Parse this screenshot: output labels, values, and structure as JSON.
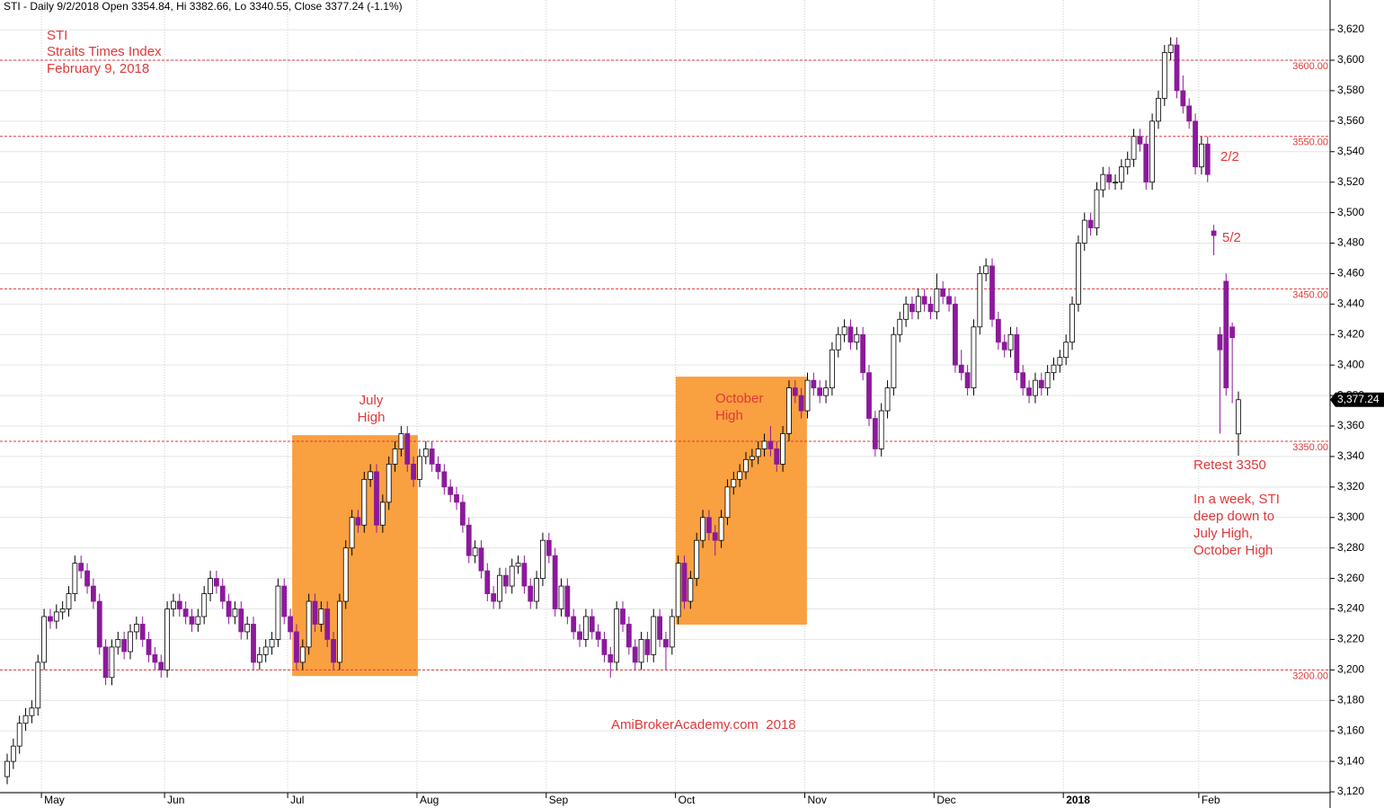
{
  "chart_data": {
    "type": "candlestick",
    "title": "STI - Daily 9/2/2018 Open 3354.84, Hi 3382.66, Lo 3340.55, Close 3377.24 (-1.1%)",
    "categories": [
      null,
      null,
      null,
      null,
      null,
      null,
      "May",
      null,
      null,
      null,
      null,
      null,
      null,
      null,
      null,
      null,
      null,
      null,
      null,
      null,
      null,
      null,
      null,
      null,
      null,
      null,
      "Jun",
      null,
      null,
      null,
      null,
      null,
      null,
      null,
      null,
      null,
      null,
      null,
      null,
      null,
      null,
      null,
      null,
      null,
      null,
      null,
      "Jul",
      null,
      null,
      null,
      null,
      null,
      null,
      null,
      null,
      null,
      null,
      null,
      null,
      null,
      null,
      null,
      null,
      null,
      null,
      null,
      null,
      "Aug",
      null,
      null,
      null,
      null,
      null,
      null,
      null,
      null,
      null,
      null,
      null,
      null,
      null,
      null,
      null,
      null,
      null,
      null,
      null,
      null,
      "Sep",
      null,
      null,
      null,
      null,
      null,
      null,
      null,
      null,
      null,
      null,
      null,
      null,
      null,
      null,
      null,
      null,
      null,
      null,
      null,
      null,
      "Oct",
      null,
      null,
      null,
      null,
      null,
      null,
      null,
      null,
      null,
      null,
      null,
      null,
      null,
      null,
      null,
      null,
      null,
      null,
      null,
      null,
      "Nov",
      null,
      null,
      null,
      null,
      null,
      null,
      null,
      null,
      null,
      null,
      null,
      null,
      null,
      null,
      null,
      null,
      null,
      null,
      null,
      null,
      "Dec",
      null,
      null,
      null,
      null,
      null,
      null,
      null,
      null,
      null,
      null,
      null,
      null,
      null,
      null,
      null,
      null,
      null,
      null,
      null,
      null,
      "2018",
      null,
      null,
      null,
      null,
      null,
      null,
      null,
      null,
      null,
      null,
      null,
      null,
      null,
      null,
      null,
      null,
      null,
      null,
      null,
      null,
      null,
      "Feb",
      null,
      null,
      null,
      null,
      null,
      null
    ],
    "open": [
      3130,
      3140,
      3150,
      3165,
      3170,
      3175,
      3205,
      3235,
      3232,
      3238,
      3240,
      3250,
      3270,
      3265,
      3255,
      3245,
      3215,
      3195,
      3215,
      3220,
      3212,
      3225,
      3230,
      3220,
      3210,
      3205,
      3200,
      3240,
      3245,
      3240,
      3235,
      3230,
      3235,
      3250,
      3260,
      3255,
      3245,
      3235,
      3240,
      3225,
      3230,
      3205,
      3210,
      3215,
      3220,
      3255,
      3235,
      3225,
      3205,
      3215,
      3245,
      3230,
      3240,
      3220,
      3205,
      3245,
      3280,
      3300,
      3295,
      3325,
      3330,
      3295,
      3310,
      3335,
      3345,
      3355,
      3335,
      3325,
      3340,
      3345,
      3335,
      3330,
      3320,
      3315,
      3310,
      3295,
      3275,
      3280,
      3265,
      3250,
      3245,
      3262,
      3255,
      3268,
      3270,
      3255,
      3245,
      3260,
      3285,
      3275,
      3240,
      3255,
      3235,
      3225,
      3220,
      3235,
      3225,
      3220,
      3210,
      3205,
      3240,
      3230,
      3215,
      3205,
      3220,
      3210,
      3235,
      3220,
      3215,
      3235,
      3270,
      3245,
      3260,
      3285,
      3300,
      3290,
      3285,
      3300,
      3320,
      3325,
      3330,
      3338,
      3340,
      3345,
      3350,
      3345,
      3335,
      3355,
      3385,
      3380,
      3370,
      3390,
      3385,
      3380,
      3385,
      3410,
      3420,
      3425,
      3415,
      3420,
      3395,
      3365,
      3345,
      3370,
      3385,
      3420,
      3430,
      3440,
      3435,
      3445,
      3440,
      3435,
      3450,
      3445,
      3440,
      3400,
      3395,
      3385,
      3425,
      3460,
      3465,
      3430,
      3415,
      3410,
      3420,
      3395,
      3385,
      3380,
      3390,
      3385,
      3395,
      3400,
      3405,
      3415,
      3440,
      3480,
      3495,
      3490,
      3515,
      3525,
      3520,
      3520,
      3530,
      3535,
      3550,
      3545,
      3520,
      3560,
      3575,
      3605,
      3610,
      3580,
      3570,
      3560,
      3530,
      3545,
      3488,
      3420,
      3455,
      3425,
      3354.84
    ],
    "high": [
      3145,
      3155,
      3170,
      3175,
      3180,
      3210,
      3240,
      3240,
      3243,
      3245,
      3255,
      3275,
      3275,
      3270,
      3260,
      3250,
      3220,
      3220,
      3225,
      3225,
      3230,
      3235,
      3235,
      3225,
      3215,
      3210,
      3245,
      3250,
      3250,
      3245,
      3240,
      3240,
      3255,
      3265,
      3265,
      3260,
      3250,
      3245,
      3245,
      3235,
      3235,
      3215,
      3220,
      3225,
      3260,
      3260,
      3240,
      3230,
      3220,
      3250,
      3250,
      3245,
      3245,
      3225,
      3250,
      3285,
      3305,
      3305,
      3330,
      3335,
      3335,
      3315,
      3340,
      3350,
      3360,
      3360,
      3340,
      3345,
      3350,
      3350,
      3340,
      3335,
      3325,
      3320,
      3315,
      3300,
      3285,
      3285,
      3270,
      3255,
      3267,
      3267,
      3273,
      3275,
      3275,
      3260,
      3265,
      3290,
      3290,
      3280,
      3260,
      3260,
      3240,
      3230,
      3240,
      3240,
      3230,
      3225,
      3215,
      3245,
      3245,
      3235,
      3220,
      3225,
      3225,
      3240,
      3240,
      3225,
      3240,
      3275,
      3275,
      3265,
      3290,
      3305,
      3305,
      3295,
      3305,
      3325,
      3330,
      3335,
      3343,
      3345,
      3350,
      3355,
      3360,
      3350,
      3360,
      3390,
      3390,
      3385,
      3395,
      3395,
      3390,
      3390,
      3415,
      3425,
      3430,
      3430,
      3425,
      3425,
      3400,
      3370,
      3375,
      3390,
      3425,
      3435,
      3445,
      3445,
      3450,
      3450,
      3445,
      3460,
      3455,
      3450,
      3445,
      3410,
      3400,
      3430,
      3465,
      3470,
      3470,
      3435,
      3420,
      3425,
      3425,
      3400,
      3390,
      3395,
      3395,
      3400,
      3405,
      3410,
      3420,
      3445,
      3485,
      3500,
      3500,
      3520,
      3530,
      3530,
      3525,
      3535,
      3540,
      3555,
      3555,
      3550,
      3565,
      3580,
      3610,
      3615,
      3615,
      3590,
      3575,
      3565,
      3550,
      3550,
      3492,
      3425,
      3460,
      3428,
      3382.66
    ],
    "low": [
      3125,
      3135,
      3145,
      3160,
      3165,
      3170,
      3200,
      3227,
      3227,
      3233,
      3235,
      3245,
      3260,
      3250,
      3240,
      3210,
      3190,
      3190,
      3210,
      3207,
      3207,
      3220,
      3215,
      3205,
      3200,
      3195,
      3195,
      3235,
      3235,
      3230,
      3225,
      3225,
      3230,
      3245,
      3250,
      3240,
      3230,
      3230,
      3220,
      3220,
      3200,
      3200,
      3205,
      3210,
      3215,
      3230,
      3220,
      3200,
      3200,
      3210,
      3225,
      3225,
      3215,
      3200,
      3200,
      3240,
      3275,
      3290,
      3290,
      3320,
      3290,
      3290,
      3305,
      3330,
      3340,
      3330,
      3320,
      3320,
      3335,
      3330,
      3325,
      3315,
      3310,
      3305,
      3290,
      3270,
      3270,
      3260,
      3245,
      3240,
      3240,
      3250,
      3250,
      3263,
      3250,
      3240,
      3240,
      3255,
      3270,
      3235,
      3235,
      3230,
      3220,
      3215,
      3215,
      3220,
      3215,
      3205,
      3195,
      3200,
      3225,
      3210,
      3200,
      3200,
      3205,
      3205,
      3215,
      3200,
      3210,
      3230,
      3240,
      3240,
      3255,
      3280,
      3285,
      3275,
      3280,
      3295,
      3315,
      3320,
      3325,
      3333,
      3335,
      3340,
      3340,
      3330,
      3330,
      3350,
      3375,
      3365,
      3365,
      3380,
      3375,
      3375,
      3380,
      3405,
      3415,
      3410,
      3410,
      3390,
      3360,
      3340,
      3340,
      3365,
      3380,
      3415,
      3425,
      3430,
      3430,
      3435,
      3430,
      3430,
      3440,
      3435,
      3395,
      3390,
      3380,
      3380,
      3420,
      3455,
      3425,
      3410,
      3405,
      3405,
      3390,
      3380,
      3375,
      3375,
      3380,
      3380,
      3390,
      3395,
      3400,
      3410,
      3435,
      3475,
      3485,
      3485,
      3510,
      3515,
      3515,
      3515,
      3525,
      3530,
      3540,
      3515,
      3515,
      3555,
      3570,
      3600,
      3575,
      3565,
      3555,
      3525,
      3525,
      3520,
      3472,
      3355,
      3380,
      3375,
      3340.55
    ],
    "close": [
      3140,
      3150,
      3165,
      3170,
      3175,
      3205,
      3235,
      3232,
      3238,
      3240,
      3250,
      3270,
      3265,
      3255,
      3245,
      3215,
      3195,
      3215,
      3220,
      3212,
      3225,
      3230,
      3220,
      3210,
      3205,
      3200,
      3240,
      3245,
      3240,
      3235,
      3230,
      3235,
      3250,
      3260,
      3255,
      3245,
      3235,
      3240,
      3225,
      3230,
      3205,
      3210,
      3215,
      3220,
      3255,
      3235,
      3225,
      3205,
      3215,
      3245,
      3230,
      3240,
      3220,
      3205,
      3245,
      3280,
      3300,
      3295,
      3325,
      3330,
      3295,
      3310,
      3335,
      3345,
      3355,
      3335,
      3325,
      3340,
      3345,
      3335,
      3330,
      3320,
      3315,
      3310,
      3295,
      3275,
      3280,
      3265,
      3250,
      3245,
      3262,
      3255,
      3268,
      3270,
      3255,
      3245,
      3260,
      3285,
      3275,
      3240,
      3255,
      3235,
      3225,
      3220,
      3235,
      3225,
      3220,
      3210,
      3205,
      3240,
      3230,
      3215,
      3205,
      3220,
      3210,
      3235,
      3220,
      3215,
      3235,
      3270,
      3245,
      3260,
      3285,
      3300,
      3290,
      3285,
      3300,
      3320,
      3325,
      3330,
      3338,
      3340,
      3345,
      3350,
      3345,
      3335,
      3355,
      3385,
      3380,
      3370,
      3390,
      3385,
      3380,
      3385,
      3410,
      3420,
      3425,
      3415,
      3420,
      3395,
      3365,
      3345,
      3370,
      3385,
      3420,
      3430,
      3440,
      3435,
      3445,
      3440,
      3435,
      3450,
      3445,
      3440,
      3400,
      3395,
      3385,
      3425,
      3460,
      3465,
      3430,
      3415,
      3410,
      3420,
      3395,
      3385,
      3380,
      3390,
      3385,
      3395,
      3400,
      3405,
      3415,
      3440,
      3480,
      3495,
      3490,
      3515,
      3525,
      3520,
      3520,
      3530,
      3535,
      3550,
      3545,
      3520,
      3560,
      3575,
      3605,
      3610,
      3580,
      3570,
      3560,
      3530,
      3545,
      3525,
      3485,
      3410,
      3385,
      3418,
      3377.24
    ],
    "up_color": "#ffffff",
    "down_color": "#8b1a9b",
    "ylim": [
      3109.4,
      3639.5
    ],
    "yticks": [
      {
        "value": 3120,
        "label": "3,120"
      },
      {
        "value": 3140,
        "label": "3,140"
      },
      {
        "value": 3160,
        "label": "3,160"
      },
      {
        "value": 3180,
        "label": "3,180"
      },
      {
        "value": 3200,
        "label": "3,200"
      },
      {
        "value": 3220,
        "label": "3,220"
      },
      {
        "value": 3240,
        "label": "3,240"
      },
      {
        "value": 3260,
        "label": "3,260"
      },
      {
        "value": 3280,
        "label": "3,280"
      },
      {
        "value": 3300,
        "label": "3,300"
      },
      {
        "value": 3320,
        "label": "3,320"
      },
      {
        "value": 3340,
        "label": "3,340"
      },
      {
        "value": 3360,
        "label": "3,360"
      },
      {
        "value": 3380,
        "label": "3,380"
      },
      {
        "value": 3400,
        "label": "3,400"
      },
      {
        "value": 3420,
        "label": "3,420"
      },
      {
        "value": 3440,
        "label": "3,440"
      },
      {
        "value": 3460,
        "label": "3,460"
      },
      {
        "value": 3480,
        "label": "3,480"
      },
      {
        "value": 3500,
        "label": "3,500"
      },
      {
        "value": 3520,
        "label": "3,520"
      },
      {
        "value": 3540,
        "label": "3,540"
      },
      {
        "value": 3560,
        "label": "3,560"
      },
      {
        "value": 3580,
        "label": "3,580"
      },
      {
        "value": 3600,
        "label": "3,600"
      },
      {
        "value": 3620,
        "label": "3,620"
      }
    ],
    "grid": true,
    "last_price": {
      "value": 3377.24,
      "label": "3,377.24"
    },
    "levels": [
      {
        "value": 3600,
        "label": "3600.00"
      },
      {
        "value": 3550,
        "label": "3550.00"
      },
      {
        "value": 3450,
        "label": "3450.00"
      },
      {
        "value": 3350,
        "label": "3350.00"
      },
      {
        "value": 3200,
        "label": "3200.00"
      }
    ],
    "boxes": [
      {
        "label": [
          "July",
          "High"
        ],
        "xlim": [
          46.3,
          66.7
        ],
        "ylim": [
          3196,
          3354
        ]
      },
      {
        "label": [
          "October",
          "High"
        ],
        "xlim": [
          108.6,
          129.9
        ],
        "ylim": [
          3229.7,
          3392.4
        ]
      }
    ],
    "header": [
      "STI",
      "Straits Times Index",
      "February 9, 2018"
    ],
    "notes": [
      "2/2",
      "5/2",
      "Retest 3350"
    ],
    "comment": [
      "In a week, STI",
      "deep down to",
      "July High,",
      "October High"
    ],
    "watermark": "AmiBrokerAcademy.com  2018"
  }
}
